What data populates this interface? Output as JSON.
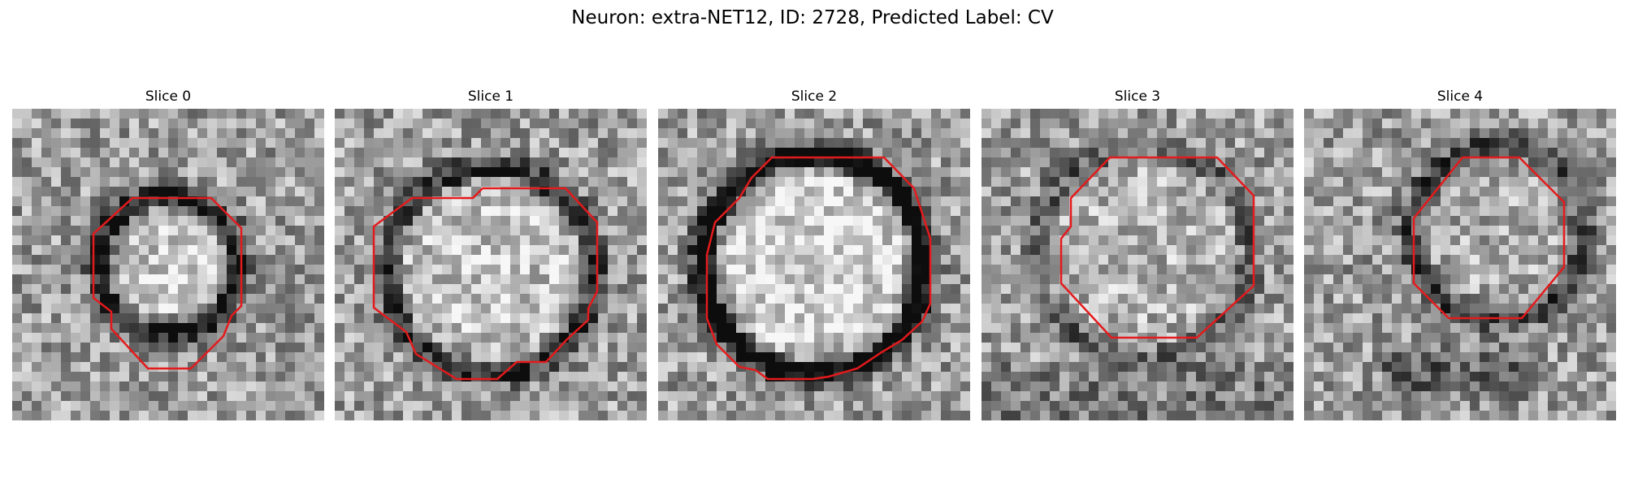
{
  "figure": {
    "title": "Neuron: extra-NET12, ID: 2728, Predicted Label: CV",
    "contour_color": "#e41a1c",
    "colormap": "grayscale"
  },
  "slices": [
    {
      "title": "Slice 0",
      "ring_radius": 0.22,
      "ring_darkness": 0.55,
      "center_brightness": 0.18,
      "shape": "octagon-small"
    },
    {
      "title": "Slice 1",
      "ring_radius": 0.33,
      "ring_darkness": 0.45,
      "center_brightness": 0.15,
      "shape": "wide-irregular"
    },
    {
      "title": "Slice 2",
      "ring_radius": 0.35,
      "ring_darkness": 0.75,
      "center_brightness": 0.22,
      "shape": "circle-large"
    },
    {
      "title": "Slice 3",
      "ring_radius": 0.34,
      "ring_darkness": 0.25,
      "center_brightness": 0.08,
      "shape": "octagon-medium"
    },
    {
      "title": "Slice 4",
      "ring_radius": 0.28,
      "ring_darkness": 0.35,
      "center_brightness": 0.05,
      "shape": "octagon-upper-right"
    }
  ]
}
